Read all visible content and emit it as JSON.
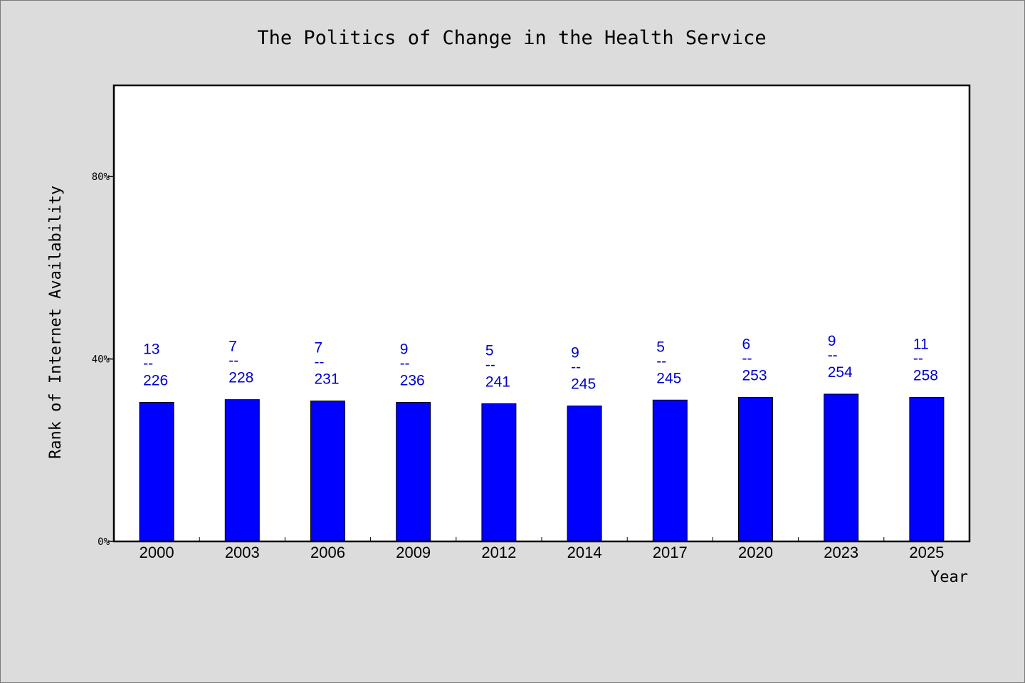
{
  "chart_data": {
    "type": "bar",
    "title": "The Politics of Change in the Health Service",
    "xlabel": "Year",
    "ylabel": "Rank of Internet Availability",
    "ylim": [
      0,
      100
    ],
    "yticks": [
      0,
      40,
      80
    ],
    "ytick_labels": [
      "0%",
      "40%",
      "80%"
    ],
    "grid": false,
    "bar_color": "#0000ff",
    "label_color": "#0000cc",
    "categories": [
      "2000",
      "2003",
      "2006",
      "2009",
      "2012",
      "2014",
      "2017",
      "2020",
      "2023",
      "2025"
    ],
    "values": [
      30.5,
      31.1,
      30.8,
      30.5,
      30.2,
      29.7,
      31.0,
      31.6,
      32.3,
      31.6
    ],
    "rank_labels": [
      "13",
      "7",
      "7",
      "9",
      "5",
      "9",
      "5",
      "6",
      "9",
      "11"
    ],
    "total_labels": [
      "226",
      "228",
      "231",
      "236",
      "241",
      "245",
      "245",
      "253",
      "254",
      "258"
    ],
    "label_separator": "--"
  }
}
